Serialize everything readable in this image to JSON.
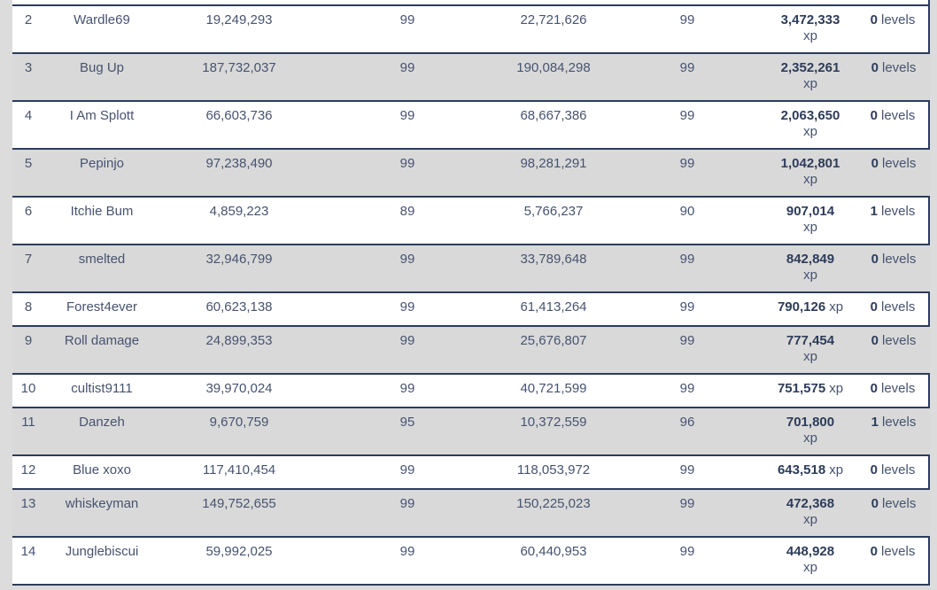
{
  "table": {
    "xp_suffix": "xp",
    "levels_suffix": "levels",
    "rows": [
      {
        "rank": "2",
        "name": "Wardle69",
        "start_xp": "19,249,293",
        "start_level": "99",
        "end_xp": "22,721,626",
        "end_level": "99",
        "gained_xp": "3,472,333",
        "xp_inline": false,
        "gained_levels": "0"
      },
      {
        "rank": "3",
        "name": "Bug Up",
        "start_xp": "187,732,037",
        "start_level": "99",
        "end_xp": "190,084,298",
        "end_level": "99",
        "gained_xp": "2,352,261",
        "xp_inline": false,
        "gained_levels": "0"
      },
      {
        "rank": "4",
        "name": "I Am Splott",
        "start_xp": "66,603,736",
        "start_level": "99",
        "end_xp": "68,667,386",
        "end_level": "99",
        "gained_xp": "2,063,650",
        "xp_inline": false,
        "gained_levels": "0"
      },
      {
        "rank": "5",
        "name": "Pepinjo",
        "start_xp": "97,238,490",
        "start_level": "99",
        "end_xp": "98,281,291",
        "end_level": "99",
        "gained_xp": "1,042,801",
        "xp_inline": false,
        "gained_levels": "0"
      },
      {
        "rank": "6",
        "name": "Itchie Bum",
        "start_xp": "4,859,223",
        "start_level": "89",
        "end_xp": "5,766,237",
        "end_level": "90",
        "gained_xp": "907,014",
        "xp_inline": false,
        "gained_levels": "1"
      },
      {
        "rank": "7",
        "name": "smelted",
        "start_xp": "32,946,799",
        "start_level": "99",
        "end_xp": "33,789,648",
        "end_level": "99",
        "gained_xp": "842,849",
        "xp_inline": false,
        "gained_levels": "0"
      },
      {
        "rank": "8",
        "name": "Forest4ever",
        "start_xp": "60,623,138",
        "start_level": "99",
        "end_xp": "61,413,264",
        "end_level": "99",
        "gained_xp": "790,126",
        "xp_inline": true,
        "gained_levels": "0"
      },
      {
        "rank": "9",
        "name": "Roll damage",
        "start_xp": "24,899,353",
        "start_level": "99",
        "end_xp": "25,676,807",
        "end_level": "99",
        "gained_xp": "777,454",
        "xp_inline": false,
        "gained_levels": "0"
      },
      {
        "rank": "10",
        "name": "cultist9111",
        "start_xp": "39,970,024",
        "start_level": "99",
        "end_xp": "40,721,599",
        "end_level": "99",
        "gained_xp": "751,575",
        "xp_inline": true,
        "gained_levels": "0"
      },
      {
        "rank": "11",
        "name": "Danzeh",
        "start_xp": "9,670,759",
        "start_level": "95",
        "end_xp": "10,372,559",
        "end_level": "96",
        "gained_xp": "701,800",
        "xp_inline": false,
        "gained_levels": "1"
      },
      {
        "rank": "12",
        "name": "Blue xoxo",
        "start_xp": "117,410,454",
        "start_level": "99",
        "end_xp": "118,053,972",
        "end_level": "99",
        "gained_xp": "643,518",
        "xp_inline": true,
        "gained_levels": "0"
      },
      {
        "rank": "13",
        "name": "whiskeyman",
        "start_xp": "149,752,655",
        "start_level": "99",
        "end_xp": "150,225,023",
        "end_level": "99",
        "gained_xp": "472,368",
        "xp_inline": false,
        "gained_levels": "0"
      },
      {
        "rank": "14",
        "name": "Junglebiscui",
        "start_xp": "59,992,025",
        "start_level": "99",
        "end_xp": "60,440,953",
        "end_level": "99",
        "gained_xp": "448,928",
        "xp_inline": false,
        "gained_levels": "0"
      }
    ]
  },
  "colors": {
    "page_background": "#dcdcdc",
    "row_white": "#ffffff",
    "row_gray": "#d9d9d9",
    "border_navy": "#2c3c5c",
    "text_regular": "#46536f",
    "text_bold": "#2d3c5a"
  }
}
